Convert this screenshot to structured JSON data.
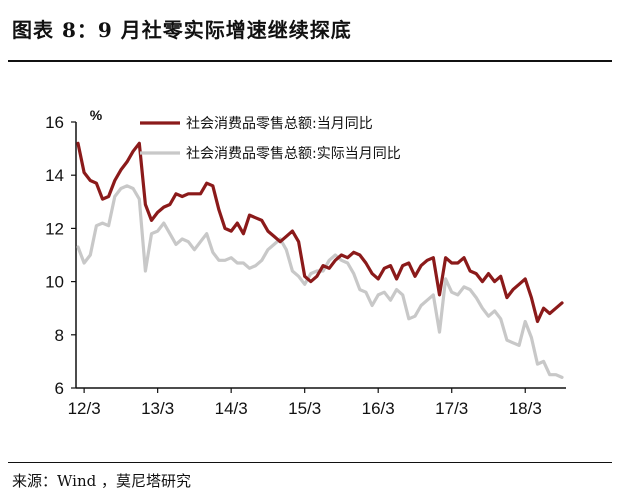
{
  "figure": {
    "title": "图表 8：9 月社零实际增速继续探底",
    "source": "来源：Wind ，莫尼塔研究"
  },
  "colors": {
    "nominal": "#8b1a1a",
    "real": "#c8c8c8"
  },
  "chart_data": {
    "type": "line",
    "title": "",
    "xlabel": "",
    "ylabel": "%",
    "ylim": [
      6,
      16
    ],
    "yticks": [
      "16",
      "14",
      "12",
      "10",
      "8",
      "6"
    ],
    "xticks": [
      "12/3",
      "13/3",
      "14/3",
      "15/3",
      "16/3",
      "17/3",
      "18/3"
    ],
    "xstart": "2012-02",
    "legend_position": "top-left",
    "grid": false,
    "series": [
      {
        "name": "社会消费品零售总额:当月同比",
        "color": "#8b1a1a",
        "values": [
          15.2,
          14.1,
          13.8,
          13.7,
          13.1,
          13.2,
          13.8,
          14.2,
          14.5,
          14.9,
          15.2,
          12.9,
          12.3,
          12.6,
          12.8,
          12.9,
          13.3,
          13.2,
          13.3,
          13.3,
          13.3,
          13.7,
          13.6,
          12.7,
          12.0,
          11.9,
          12.2,
          11.8,
          12.5,
          12.4,
          12.3,
          11.9,
          11.7,
          11.5,
          11.7,
          11.9,
          11.5,
          10.2,
          10.0,
          10.2,
          10.6,
          10.5,
          10.8,
          11.0,
          10.9,
          11.1,
          11.0,
          10.7,
          10.3,
          10.1,
          10.5,
          10.6,
          10.1,
          10.6,
          10.7,
          10.2,
          10.6,
          10.8,
          10.9,
          9.5,
          10.9,
          10.7,
          10.7,
          10.9,
          10.4,
          10.3,
          10.0,
          10.3,
          10.0,
          10.2,
          9.4,
          9.7,
          9.9,
          10.1,
          9.4,
          8.5,
          9.0,
          8.8,
          9.0,
          9.2
        ]
      },
      {
        "name": "社会消费品零售总额:实际当月同比",
        "color": "#c8c8c8",
        "values": [
          11.3,
          10.7,
          11.0,
          12.1,
          12.2,
          12.1,
          13.2,
          13.5,
          13.6,
          13.5,
          13.1,
          10.4,
          11.8,
          11.9,
          12.2,
          11.8,
          11.4,
          11.6,
          11.5,
          11.2,
          11.5,
          11.8,
          11.1,
          10.8,
          10.8,
          10.9,
          10.7,
          10.7,
          10.5,
          10.6,
          10.8,
          11.2,
          11.4,
          11.6,
          11.2,
          10.4,
          10.2,
          9.9,
          10.3,
          10.4,
          10.4,
          10.8,
          11.0,
          10.8,
          10.7,
          10.3,
          9.7,
          9.6,
          9.1,
          9.5,
          9.6,
          9.3,
          9.7,
          9.5,
          8.6,
          8.7,
          9.1,
          9.3,
          9.5,
          8.1,
          10.1,
          9.6,
          9.5,
          9.8,
          9.7,
          9.4,
          9.0,
          8.7,
          8.9,
          8.6,
          7.8,
          7.7,
          7.6,
          8.5,
          7.9,
          6.9,
          7.0,
          6.5,
          6.5,
          6.4
        ]
      }
    ]
  }
}
